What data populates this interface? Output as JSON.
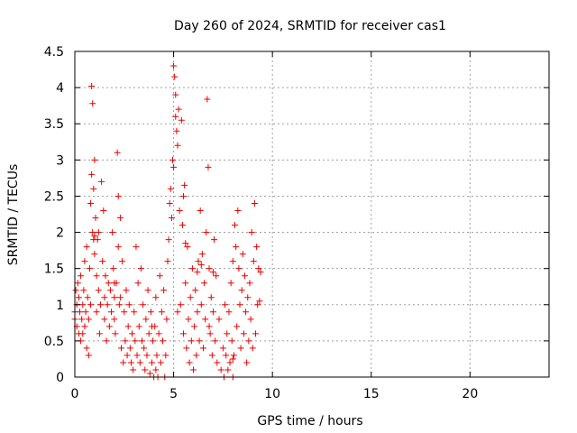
{
  "chart_data": {
    "type": "scatter",
    "title": "Day 260 of 2024, SRMTID for receiver cas1",
    "xlabel": "GPS time / hours",
    "ylabel": "SRMTID / TECUs",
    "xlim": [
      0,
      24
    ],
    "ylim": [
      0,
      4.5
    ],
    "x_ticks": [
      0,
      5,
      10,
      15,
      20
    ],
    "x_tick_labels": [
      "0",
      "5",
      "10",
      "15",
      "20"
    ],
    "y_ticks": [
      0,
      0.5,
      1,
      1.5,
      2,
      2.5,
      3,
      3.5,
      4,
      4.5
    ],
    "y_tick_labels": [
      "0",
      "0.5",
      "1",
      "1.5",
      "2",
      "2.5",
      "3",
      "3.5",
      "4",
      "4.5"
    ],
    "grid": true,
    "marker": "+",
    "color": "#ee0000",
    "series": [
      {
        "name": "cas1",
        "points": [
          [
            0.0,
            0.9
          ],
          [
            0.0,
            0.8
          ],
          [
            0.05,
            1.2
          ],
          [
            0.1,
            1.0
          ],
          [
            0.1,
            0.7
          ],
          [
            0.15,
            1.3
          ],
          [
            0.2,
            0.6
          ],
          [
            0.2,
            1.1
          ],
          [
            0.25,
            0.9
          ],
          [
            0.3,
            1.4
          ],
          [
            0.3,
            0.5
          ],
          [
            0.35,
            0.8
          ],
          [
            0.4,
            1.0
          ],
          [
            0.4,
            0.6
          ],
          [
            0.45,
            1.2
          ],
          [
            0.5,
            0.7
          ],
          [
            0.5,
            1.6
          ],
          [
            0.55,
            0.9
          ],
          [
            0.6,
            1.8
          ],
          [
            0.6,
            0.4
          ],
          [
            0.65,
            1.1
          ],
          [
            0.7,
            0.3
          ],
          [
            0.7,
            0.8
          ],
          [
            0.75,
            1.5
          ],
          [
            0.8,
            2.4
          ],
          [
            0.8,
            1.0
          ],
          [
            0.85,
            2.8
          ],
          [
            0.85,
            4.02
          ],
          [
            0.9,
            3.78
          ],
          [
            0.9,
            2.0
          ],
          [
            0.95,
            2.6
          ],
          [
            1.0,
            3.0
          ],
          [
            1.0,
            1.7
          ],
          [
            1.05,
            2.2
          ],
          [
            1.1,
            1.4
          ],
          [
            1.1,
            0.9
          ],
          [
            1.15,
            1.9
          ],
          [
            1.2,
            1.2
          ],
          [
            1.25,
            0.6
          ],
          [
            1.3,
            1.0
          ],
          [
            1.35,
            2.7
          ],
          [
            1.4,
            1.6
          ],
          [
            1.45,
            2.3
          ],
          [
            1.5,
            1.1
          ],
          [
            1.5,
            0.8
          ],
          [
            1.55,
            1.4
          ],
          [
            1.6,
            0.5
          ],
          [
            1.65,
            1.0
          ],
          [
            1.7,
            1.3
          ],
          [
            1.75,
            0.7
          ],
          [
            1.8,
            1.2
          ],
          [
            1.85,
            0.9
          ],
          [
            1.9,
            2.0
          ],
          [
            1.95,
            1.5
          ],
          [
            2.0,
            0.8
          ],
          [
            2.0,
            1.1
          ],
          [
            2.05,
            0.6
          ],
          [
            2.1,
            1.3
          ],
          [
            2.15,
            3.1
          ],
          [
            2.2,
            1.8
          ],
          [
            2.2,
            2.5
          ],
          [
            2.25,
            1.0
          ],
          [
            2.3,
            2.2
          ],
          [
            2.35,
            0.4
          ],
          [
            2.4,
            1.6
          ],
          [
            2.45,
            0.2
          ],
          [
            2.5,
            0.9
          ],
          [
            2.55,
            0.5
          ],
          [
            2.6,
            1.2
          ],
          [
            2.65,
            0.3
          ],
          [
            2.7,
            0.7
          ],
          [
            2.75,
            1.0
          ],
          [
            2.8,
            0.4
          ],
          [
            2.85,
            0.2
          ],
          [
            2.9,
            0.6
          ],
          [
            2.95,
            0.1
          ],
          [
            3.0,
            0.9
          ],
          [
            3.05,
            0.5
          ],
          [
            3.1,
            1.8
          ],
          [
            3.15,
            0.3
          ],
          [
            3.2,
            1.3
          ],
          [
            3.25,
            0.7
          ],
          [
            3.3,
            0.2
          ],
          [
            3.35,
            1.5
          ],
          [
            3.4,
            0.5
          ],
          [
            3.45,
            1.0
          ],
          [
            3.5,
            0.4
          ],
          [
            3.55,
            0.1
          ],
          [
            3.6,
            0.8
          ],
          [
            3.65,
            0.3
          ],
          [
            3.7,
            1.2
          ],
          [
            3.75,
            0.6
          ],
          [
            3.8,
            0.05
          ],
          [
            3.85,
            0.9
          ],
          [
            3.9,
            0.2
          ],
          [
            3.95,
            0.5
          ],
          [
            4.0,
            0.0
          ],
          [
            4.05,
            0.7
          ],
          [
            4.1,
            1.1
          ],
          [
            4.15,
            0.3
          ],
          [
            4.2,
            0.0
          ],
          [
            4.25,
            0.6
          ],
          [
            4.3,
            1.4
          ],
          [
            4.35,
            0.2
          ],
          [
            4.4,
            0.9
          ],
          [
            4.45,
            0.5
          ],
          [
            4.5,
            1.2
          ],
          [
            4.55,
            0.0
          ],
          [
            4.6,
            0.3
          ],
          [
            4.65,
            0.8
          ],
          [
            4.7,
            1.6
          ],
          [
            4.75,
            1.9
          ],
          [
            4.8,
            2.4
          ],
          [
            4.85,
            2.6
          ],
          [
            4.9,
            2.2
          ],
          [
            4.95,
            3.0
          ],
          [
            5.0,
            2.9
          ],
          [
            5.0,
            4.3
          ],
          [
            5.05,
            4.15
          ],
          [
            5.1,
            3.9
          ],
          [
            5.1,
            3.6
          ],
          [
            5.15,
            3.4
          ],
          [
            5.2,
            3.2
          ],
          [
            5.25,
            3.7
          ],
          [
            5.3,
            2.3
          ],
          [
            5.35,
            1.0
          ],
          [
            5.4,
            3.55
          ],
          [
            5.45,
            2.1
          ],
          [
            5.5,
            0.6
          ],
          [
            5.55,
            2.65
          ],
          [
            5.6,
            1.3
          ],
          [
            5.65,
            0.4
          ],
          [
            5.7,
            1.8
          ],
          [
            5.75,
            0.8
          ],
          [
            5.8,
            0.2
          ],
          [
            5.85,
            1.1
          ],
          [
            5.9,
            0.5
          ],
          [
            5.95,
            1.5
          ],
          [
            6.0,
            0.1
          ],
          [
            6.05,
            0.7
          ],
          [
            6.1,
            1.2
          ],
          [
            6.15,
            0.3
          ],
          [
            6.2,
            0.9
          ],
          [
            6.25,
            1.6
          ],
          [
            6.3,
            0.5
          ],
          [
            6.35,
            2.3
          ],
          [
            6.4,
            1.0
          ],
          [
            6.45,
            1.7
          ],
          [
            6.5,
            0.4
          ],
          [
            6.55,
            1.3
          ],
          [
            6.6,
            0.8
          ],
          [
            6.65,
            2.0
          ],
          [
            6.7,
            3.84
          ],
          [
            6.75,
            2.9
          ],
          [
            6.8,
            1.5
          ],
          [
            6.85,
            0.6
          ],
          [
            6.9,
            1.1
          ],
          [
            6.95,
            0.3
          ],
          [
            7.0,
            0.9
          ],
          [
            7.05,
            1.9
          ],
          [
            7.1,
            0.5
          ],
          [
            7.15,
            1.4
          ],
          [
            7.2,
            0.2
          ],
          [
            7.3,
            0.8
          ],
          [
            7.4,
            0.1
          ],
          [
            7.5,
            0.4
          ],
          [
            7.55,
            0.0
          ],
          [
            7.6,
            1.0
          ],
          [
            7.65,
            0.3
          ],
          [
            7.7,
            0.6
          ],
          [
            7.75,
            0.1
          ],
          [
            7.8,
            0.9
          ],
          [
            7.85,
            0.2
          ],
          [
            7.9,
            1.3
          ],
          [
            7.95,
            0.5
          ],
          [
            8.0,
            1.6
          ],
          [
            8.05,
            0.3
          ],
          [
            8.1,
            2.1
          ],
          [
            8.15,
            1.8
          ],
          [
            8.2,
            0.7
          ],
          [
            8.25,
            2.3
          ],
          [
            8.3,
            1.5
          ],
          [
            8.35,
            1.0
          ],
          [
            8.4,
            0.4
          ],
          [
            8.45,
            1.2
          ],
          [
            8.5,
            1.7
          ],
          [
            8.55,
            0.6
          ],
          [
            8.6,
            1.4
          ],
          [
            8.65,
            0.9
          ],
          [
            8.7,
            0.2
          ],
          [
            8.75,
            1.1
          ],
          [
            8.8,
            0.5
          ],
          [
            8.85,
            1.3
          ],
          [
            8.9,
            0.8
          ],
          [
            8.95,
            2.0
          ],
          [
            9.0,
            0.4
          ],
          [
            9.05,
            1.6
          ],
          [
            9.1,
            2.4
          ],
          [
            9.15,
            0.6
          ],
          [
            9.2,
            1.8
          ],
          [
            9.25,
            1.0
          ],
          [
            9.3,
            1.5
          ],
          [
            9.35,
            1.05
          ],
          [
            9.4,
            1.45
          ],
          [
            8.0,
            0.0
          ],
          [
            8.0,
            0.25
          ],
          [
            6.8,
            0.7
          ],
          [
            5.2,
            0.9
          ],
          [
            4.1,
            0.1
          ],
          [
            3.9,
            0.7
          ],
          [
            1.0,
            1.95
          ],
          [
            1.2,
            2.0
          ],
          [
            0.95,
            1.9
          ],
          [
            2.0,
            1.3
          ],
          [
            2.3,
            1.1
          ],
          [
            6.2,
            1.45
          ],
          [
            6.4,
            1.55
          ],
          [
            7.0,
            1.45
          ],
          [
            5.6,
            1.85
          ],
          [
            5.5,
            2.5
          ]
        ]
      }
    ]
  }
}
